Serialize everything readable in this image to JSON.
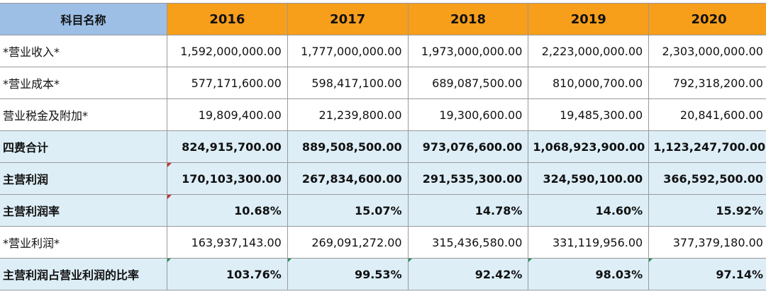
{
  "header": {
    "name_col": "科目名称",
    "years": [
      "2016",
      "2017",
      "2018",
      "2019",
      "2020"
    ]
  },
  "rows": [
    {
      "label": "*营业收入*",
      "values": [
        "1,592,000,000.00",
        "1,777,000,000.00",
        "1,973,000,000.00",
        "2,223,000,000.00",
        "2,303,000,000.00"
      ]
    },
    {
      "label": "*营业成本*",
      "values": [
        "577,171,600.00",
        "598,417,100.00",
        "689,087,500.00",
        "810,000,700.00",
        "792,318,200.00"
      ]
    },
    {
      "label": "营业税金及附加*",
      "values": [
        "19,809,400.00",
        "21,239,800.00",
        "19,300,600.00",
        "19,485,300.00",
        "20,841,600.00"
      ]
    },
    {
      "label": "四费合计",
      "values": [
        "824,915,700.00",
        "889,508,500.00",
        "973,076,600.00",
        "1,068,923,900.00",
        "1,123,247,700.00"
      ]
    },
    {
      "label": "主营利润",
      "values": [
        "170,103,300.00",
        "267,834,600.00",
        "291,535,300.00",
        "324,590,100.00",
        "366,592,500.00"
      ]
    },
    {
      "label": "主营利润率",
      "values": [
        "10.68%",
        "15.07%",
        "14.78%",
        "14.60%",
        "15.92%"
      ]
    },
    {
      "label": "*营业利润*",
      "values": [
        "163,937,143.00",
        "269,091,272.00",
        "315,436,580.00",
        "331,119,956.00",
        "377,379,180.00"
      ]
    },
    {
      "label": "主营利润占营业利润的比率",
      "values": [
        "103.76%",
        "99.53%",
        "92.42%",
        "98.03%",
        "97.14%"
      ]
    }
  ],
  "colors": {
    "name_header_bg": "#9dbfe6",
    "year_header_bg": "#f79e1b",
    "shaded_row_bg": "#ddeef7",
    "grid_line": "#9a9a9a"
  }
}
